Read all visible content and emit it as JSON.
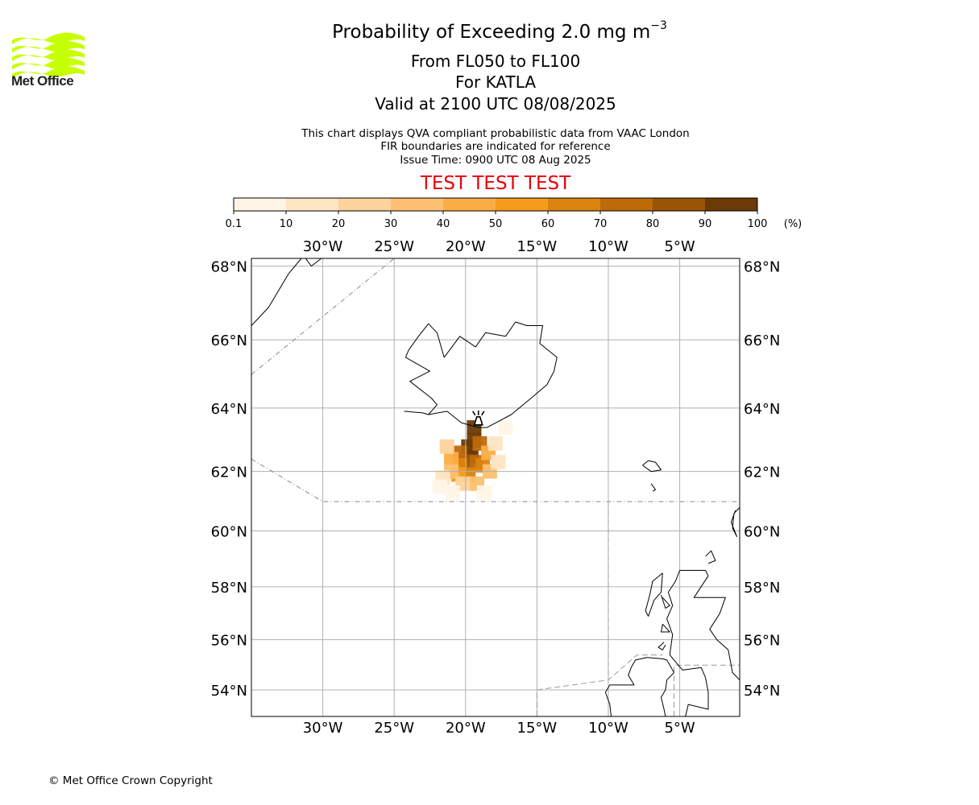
{
  "branding": {
    "logo_text": "Met Office",
    "logo_color": "#c6ff00",
    "copyright": "© Met Office Crown Copyright"
  },
  "header": {
    "title_prefix": "Probability of Exceeding 2.0 mg m",
    "title_exponent": "−3",
    "level_range": "From FL050 to FL100",
    "volcano": "For KATLA",
    "valid_time": "Valid at 2100 UTC 08/08/2025",
    "note_1": "This chart displays QVA compliant probabilistic data from VAAC London",
    "note_2": "FIR boundaries are indicated for reference",
    "issue_time": "Issue Time: 0900 UTC 08 Aug 2025",
    "test_banner": "TEST TEST TEST",
    "test_banner_color": "#e8000b"
  },
  "colorbar": {
    "ticks": [
      "0.1",
      "10",
      "20",
      "30",
      "40",
      "50",
      "60",
      "70",
      "80",
      "90",
      "100"
    ],
    "unit": "(%)",
    "colors": [
      "#fff5e6",
      "#fde5c4",
      "#fdd39c",
      "#fcc070",
      "#fbad45",
      "#f79b1d",
      "#dc820f",
      "#bd6a09",
      "#9a5506",
      "#6b3a06"
    ]
  },
  "map": {
    "lon_ticks": [
      "30°W",
      "25°W",
      "20°W",
      "15°W",
      "10°W",
      "5°W"
    ],
    "lat_ticks": [
      "68°N",
      "66°N",
      "64°N",
      "62°N",
      "60°N",
      "58°N",
      "56°N",
      "54°N"
    ],
    "lon_values": [
      -30,
      -25,
      -20,
      -15,
      -10,
      -5
    ],
    "lat_values": [
      68,
      66,
      64,
      62,
      60,
      58,
      56,
      54
    ],
    "lon_range": [
      -35,
      -0.8
    ],
    "lat_range": [
      52.9,
      68.2
    ],
    "grid": true,
    "grid_color": "#b0b0b0",
    "volcano_marker": {
      "name": "KATLA",
      "lon": -19.1,
      "lat": 63.63,
      "icon": "volcano-icon"
    },
    "probability_field": [
      {
        "lon": -19.4,
        "lat": 63.4,
        "p": 95
      },
      {
        "lon": -19.4,
        "lat": 63.0,
        "p": 95
      },
      {
        "lon": -19.8,
        "lat": 62.8,
        "p": 92
      },
      {
        "lon": -19.6,
        "lat": 62.5,
        "p": 90
      },
      {
        "lon": -20.0,
        "lat": 62.3,
        "p": 88
      },
      {
        "lon": -19.0,
        "lat": 62.9,
        "p": 75
      },
      {
        "lon": -20.4,
        "lat": 62.6,
        "p": 70
      },
      {
        "lon": -20.4,
        "lat": 62.2,
        "p": 65
      },
      {
        "lon": -19.2,
        "lat": 62.3,
        "p": 70
      },
      {
        "lon": -18.8,
        "lat": 62.2,
        "p": 60
      },
      {
        "lon": -19.8,
        "lat": 61.9,
        "p": 62
      },
      {
        "lon": -20.5,
        "lat": 61.9,
        "p": 55
      },
      {
        "lon": -21.0,
        "lat": 62.4,
        "p": 40
      },
      {
        "lon": -21.0,
        "lat": 62.0,
        "p": 35
      },
      {
        "lon": -18.4,
        "lat": 62.6,
        "p": 45
      },
      {
        "lon": -18.3,
        "lat": 62.0,
        "p": 35
      },
      {
        "lon": -19.2,
        "lat": 61.6,
        "p": 30
      },
      {
        "lon": -20.2,
        "lat": 61.6,
        "p": 28
      },
      {
        "lon": -21.3,
        "lat": 62.8,
        "p": 20
      },
      {
        "lon": -21.6,
        "lat": 61.8,
        "p": 12
      },
      {
        "lon": -17.9,
        "lat": 62.9,
        "p": 18
      },
      {
        "lon": -17.7,
        "lat": 62.3,
        "p": 14
      },
      {
        "lon": -17.2,
        "lat": 63.4,
        "p": 8
      },
      {
        "lon": -18.7,
        "lat": 61.3,
        "p": 6
      },
      {
        "lon": -21.8,
        "lat": 61.5,
        "p": 8
      },
      {
        "lon": -20.9,
        "lat": 61.3,
        "p": 5
      }
    ]
  }
}
